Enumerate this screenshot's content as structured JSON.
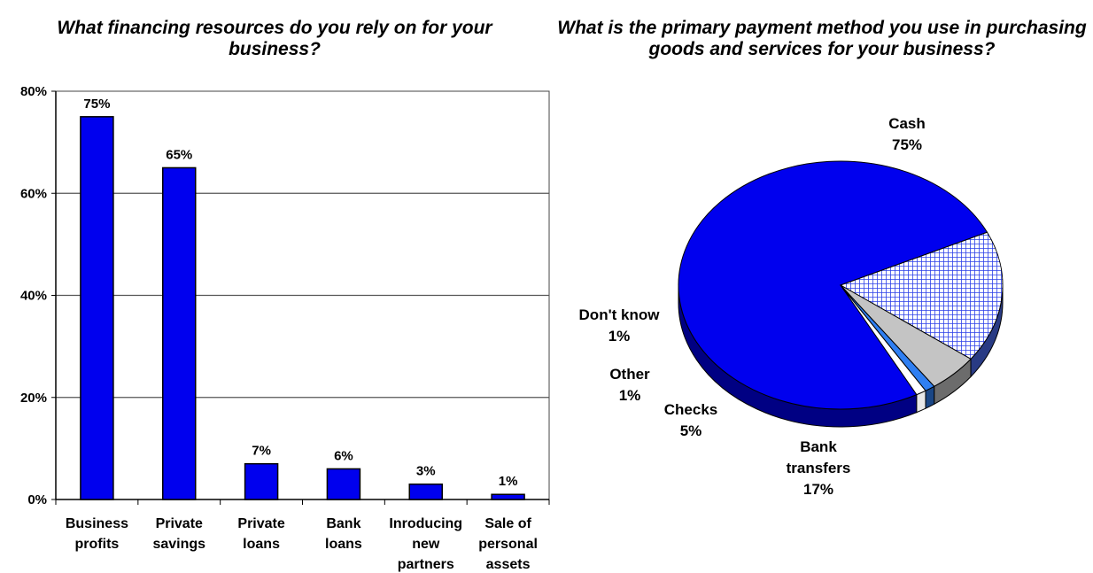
{
  "chart_data": [
    {
      "type": "bar",
      "title": "What financing resources do you rely on for your business?",
      "categories": [
        [
          "Business",
          "profits"
        ],
        [
          "Private",
          "savings"
        ],
        [
          "Private",
          "loans"
        ],
        [
          "Bank",
          "loans"
        ],
        [
          "Inroducing",
          "new",
          "partners"
        ],
        [
          "Sale of",
          "personal",
          "assets"
        ]
      ],
      "values": [
        75,
        65,
        7,
        6,
        3,
        1
      ],
      "data_labels": [
        "75%",
        "65%",
        "7%",
        "6%",
        "3%",
        "1%"
      ],
      "yticks": [
        "0%",
        "20%",
        "40%",
        "60%",
        "80%"
      ],
      "ylim": [
        0,
        80
      ],
      "grid": true,
      "bar_color": "#0000ee",
      "xlabel": "",
      "ylabel": ""
    },
    {
      "type": "pie",
      "title": "What is the primary payment method you use in purchasing goods and services for your business?",
      "slices": [
        {
          "label": [
            "Cash"
          ],
          "value": 75,
          "display": "75%",
          "color": "#0000ee",
          "pattern": "solid"
        },
        {
          "label": [
            "Bank",
            "transfers"
          ],
          "value": 17,
          "display": "17%",
          "color": "#4a6cf0",
          "pattern": "grid"
        },
        {
          "label": [
            "Checks"
          ],
          "value": 5,
          "display": "5%",
          "color": "#c4c4c4",
          "pattern": "solid"
        },
        {
          "label": [
            "Other"
          ],
          "value": 1,
          "display": "1%",
          "color": "#2f7ff2",
          "pattern": "solid"
        },
        {
          "label": [
            "Don't know"
          ],
          "value": 1,
          "display": "1%",
          "color": "#ffffff",
          "pattern": "solid"
        }
      ]
    }
  ]
}
